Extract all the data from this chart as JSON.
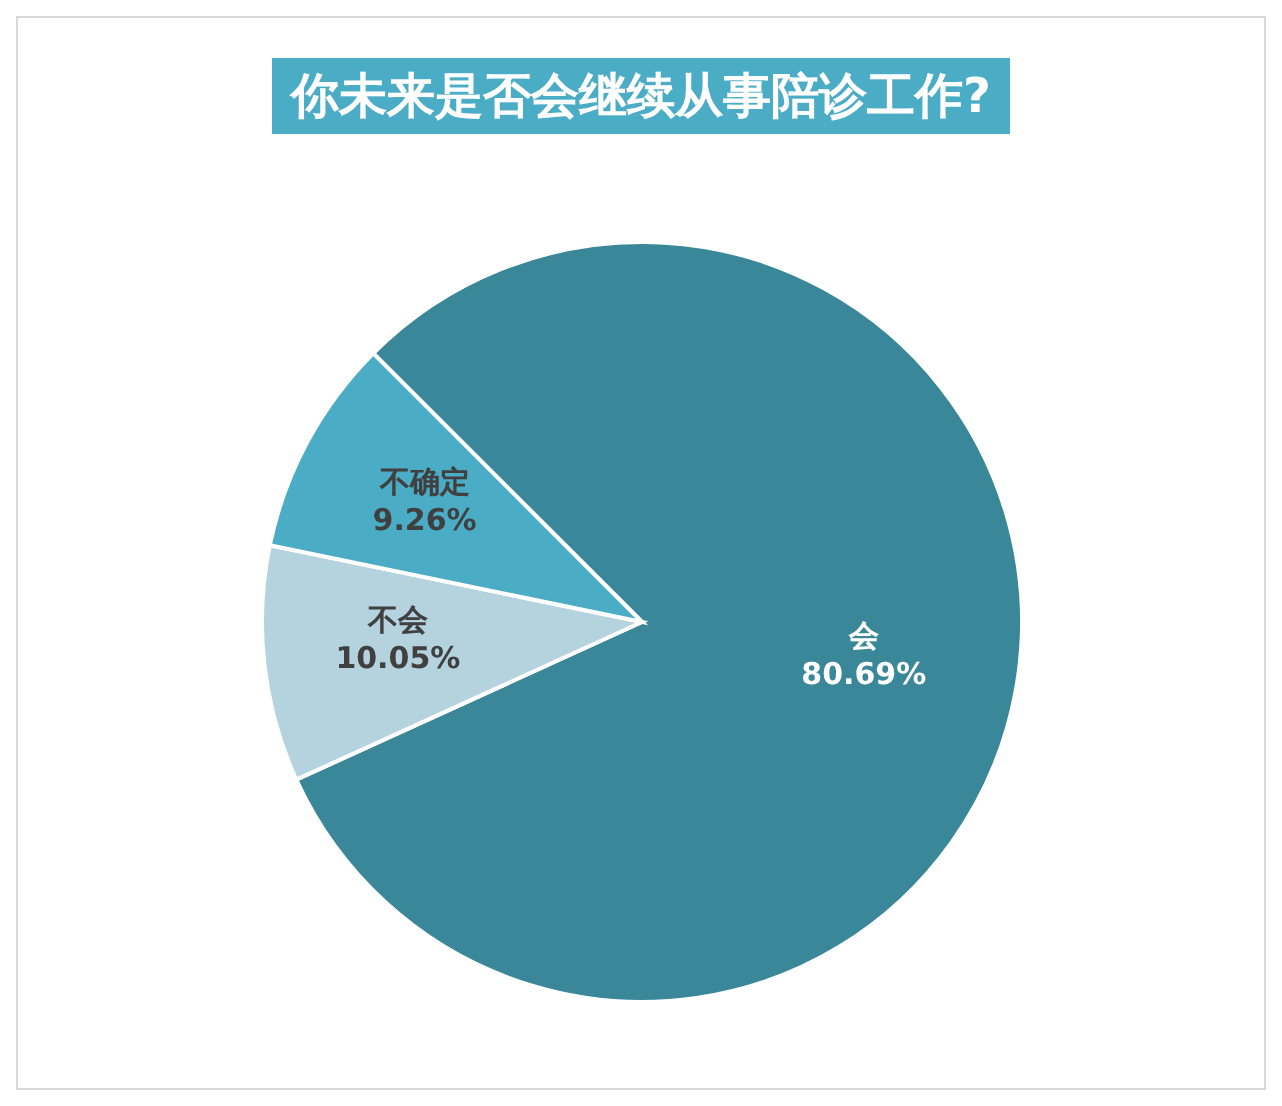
{
  "chart_data": {
    "type": "pie",
    "title": "你未来是否会继续从事陪诊工作?",
    "categories": [
      "会",
      "不会",
      "不确定"
    ],
    "values": [
      80.69,
      10.05,
      9.26
    ],
    "value_labels": [
      "80.69%",
      "10.05%",
      "9.26%"
    ],
    "colors": [
      "#3a8799",
      "#b4d3df",
      "#4bacc6"
    ],
    "legend": false
  }
}
